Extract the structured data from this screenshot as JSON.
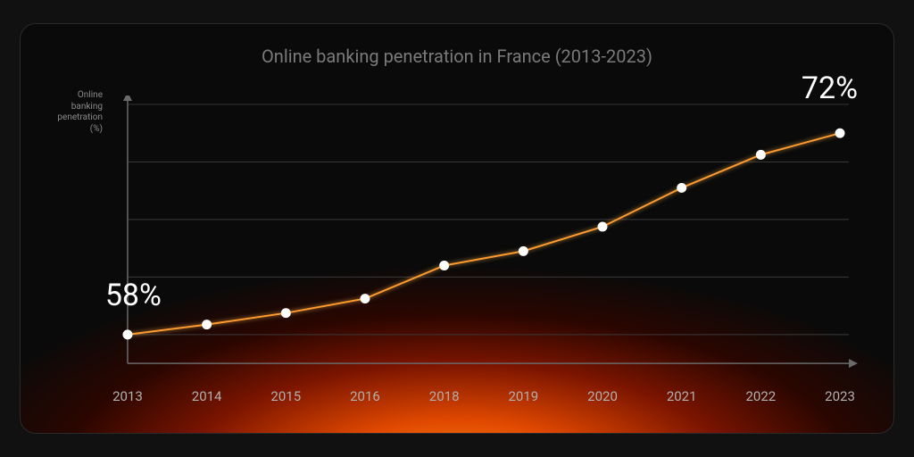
{
  "chart": {
    "type": "line",
    "title": "Online banking penetration in France (2013-2023)",
    "ylabel": "Online banking penetration (%)",
    "x_categories": [
      "2013",
      "2014",
      "2015",
      "2016",
      "2018",
      "2019",
      "2020",
      "2021",
      "2022",
      "2023"
    ],
    "series": {
      "values": [
        58,
        58.7,
        59.5,
        60.5,
        62.8,
        63.8,
        65.5,
        68.2,
        70.5,
        72
      ],
      "line_color": "#ff9a2e",
      "glow_color": "#ffb84d",
      "marker_color": "#ffffff",
      "marker_radius": 5.5,
      "line_width": 2
    },
    "y_domain": [
      56,
      74
    ],
    "gridlines_y": [
      58,
      62,
      66,
      70,
      74
    ],
    "grid_color": "#3a3a3a",
    "axis_color": "#6a6a6a",
    "callouts": {
      "start": {
        "text": "58%",
        "fontsize": 34,
        "color": "#ffffff"
      },
      "end": {
        "text": "72%",
        "fontsize": 34,
        "color": "#ffffff"
      }
    },
    "title_color": "#7a7a7a",
    "title_fontsize": 20,
    "xlabel_color": "#b0b0b0",
    "xlabel_fontsize": 15,
    "ylabel_color": "#8a8a8a",
    "ylabel_fontsize": 10,
    "background_glow_color": "#ff8c1a",
    "card_border_color": "#2a2a2a",
    "card_border_radius": 18
  }
}
